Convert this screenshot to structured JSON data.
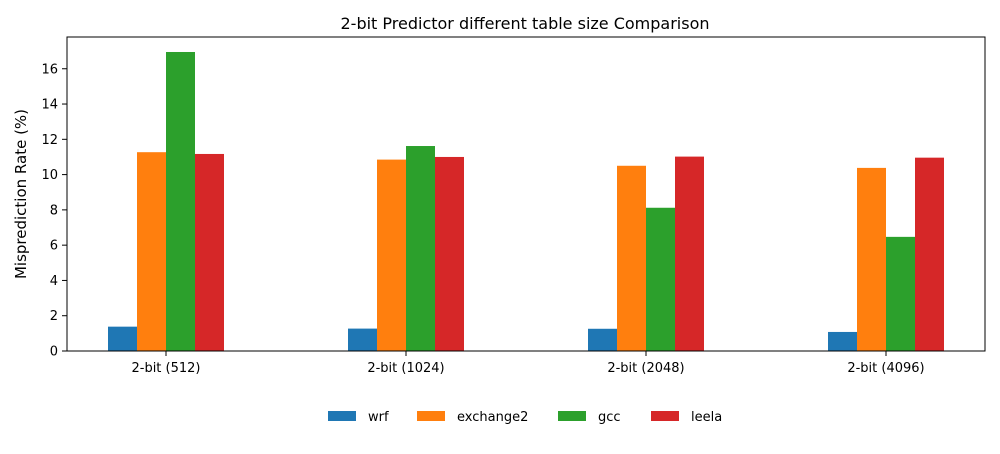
{
  "chart_data": {
    "type": "bar",
    "title": "2-bit Predictor different table size Comparison",
    "xlabel": "",
    "ylabel": "Misprediction Rate (%)",
    "categories": [
      "2-bit (512)",
      "2-bit (1024)",
      "2-bit (2048)",
      "2-bit (4096)"
    ],
    "series": [
      {
        "name": "wrf",
        "color": "#1f77b4",
        "values": [
          1.38,
          1.27,
          1.26,
          1.08
        ]
      },
      {
        "name": "exchange2",
        "color": "#ff7f0e",
        "values": [
          11.27,
          10.85,
          10.5,
          10.38
        ]
      },
      {
        "name": "gcc",
        "color": "#2ca02c",
        "values": [
          16.95,
          11.62,
          8.12,
          6.47
        ]
      },
      {
        "name": "leela",
        "color": "#d62728",
        "values": [
          11.17,
          11.0,
          11.02,
          10.96
        ]
      }
    ],
    "ylim": [
      0,
      17.8
    ],
    "yticks": [
      "0",
      "2",
      "4",
      "6",
      "8",
      "10",
      "12",
      "14",
      "16"
    ],
    "grid": false,
    "legend_position": "bottom-center"
  }
}
